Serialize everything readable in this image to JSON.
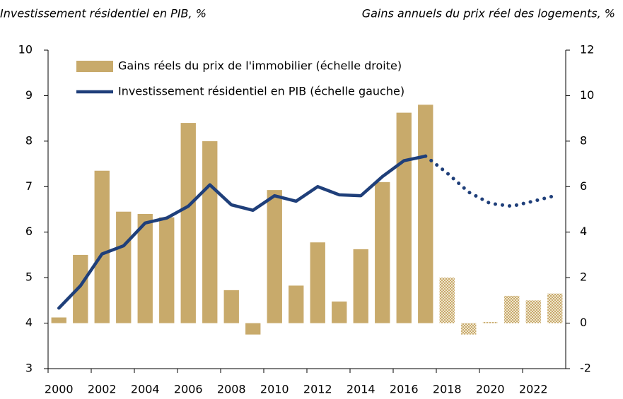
{
  "chart_data": {
    "type": "bar_line",
    "left_axis_title": "Investissement résidentiel en PIB, %",
    "right_axis_title": "Gains annuels du prix réel des logements, %",
    "categories": [
      "2000",
      null,
      "2002",
      null,
      "2004",
      null,
      "2006",
      null,
      "2008",
      null,
      "2010",
      null,
      "2012",
      null,
      "2014",
      null,
      "2016",
      null,
      "2018",
      null,
      "2020",
      null,
      "2022",
      null
    ],
    "series": [
      {
        "name": "Gains réels du prix de l'immobilier (échelle droite)",
        "type": "bar",
        "axis": "y2",
        "color": "#c8aa6b",
        "projection_start": "2018",
        "values": [
          0.25,
          3.0,
          6.7,
          4.9,
          4.8,
          4.65,
          8.8,
          8.0,
          1.45,
          -0.5,
          5.85,
          1.65,
          3.55,
          0.95,
          3.25,
          6.2,
          9.25,
          9.6,
          2.0,
          -0.5,
          0.05,
          1.2,
          1.0,
          1.3
        ]
      },
      {
        "name": "Investissement résidentiel en PIB (échelle gauche)",
        "type": "line",
        "axis": "y",
        "color": "#1f3f7a",
        "projection_start": "2018",
        "values": [
          4.33,
          4.82,
          5.52,
          5.7,
          6.2,
          6.31,
          6.57,
          7.04,
          6.6,
          6.48,
          6.8,
          6.68,
          7.0,
          6.82,
          6.8,
          7.22,
          7.57,
          7.67,
          7.3,
          6.88,
          6.63,
          6.57,
          6.68,
          6.8
        ]
      }
    ],
    "ylim": [
      3,
      10
    ],
    "yticks": [
      3,
      4,
      5,
      6,
      7,
      8,
      9,
      10
    ],
    "y2lim": [
      -2,
      12
    ],
    "y2ticks": [
      -2,
      0,
      2,
      4,
      6,
      8,
      10,
      12
    ],
    "legend": "top-left",
    "grid": false
  }
}
